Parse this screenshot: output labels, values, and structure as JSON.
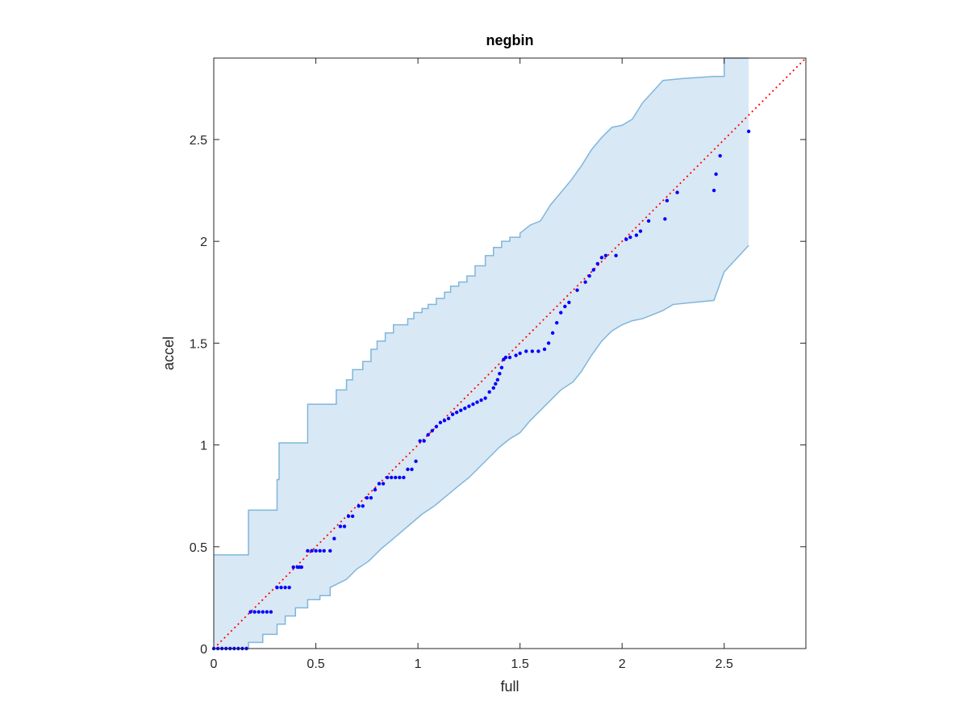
{
  "chart_data": {
    "type": "scatter",
    "title": "negbin",
    "xlabel": "full",
    "ylabel": "accel",
    "xlim": [
      0,
      2.9
    ],
    "ylim": [
      0,
      2.9
    ],
    "xticks": [
      0,
      0.5,
      1,
      1.5,
      2,
      2.5
    ],
    "yticks": [
      0,
      0.5,
      1,
      1.5,
      2,
      2.5
    ],
    "xtick_labels": [
      "0",
      "0.5",
      "1",
      "1.5",
      "2",
      "2.5"
    ],
    "ytick_labels": [
      "0",
      "0.5",
      "1",
      "1.5",
      "2",
      "2.5"
    ],
    "grid": false,
    "colors": {
      "points": "#0000ff",
      "reference": "#ff0000",
      "band_fill": "#d9e8f5",
      "band_edge": "#7fb6dc",
      "axes": "#262626"
    },
    "reference_line": {
      "x": [
        0,
        2.9
      ],
      "y": [
        0,
        2.9
      ],
      "style": "dotted"
    },
    "band_upper": {
      "x": [
        0,
        0.17,
        0.17,
        0.18,
        0.18,
        0.31,
        0.31,
        0.32,
        0.32,
        0.46,
        0.46,
        0.57,
        0.57,
        0.6,
        0.6,
        0.65,
        0.65,
        0.68,
        0.68,
        0.73,
        0.73,
        0.77,
        0.77,
        0.8,
        0.8,
        0.84,
        0.84,
        0.88,
        0.88,
        0.95,
        0.95,
        0.98,
        0.98,
        1.02,
        1.02,
        1.05,
        1.05,
        1.09,
        1.09,
        1.13,
        1.13,
        1.16,
        1.16,
        1.2,
        1.2,
        1.24,
        1.24,
        1.28,
        1.28,
        1.33,
        1.33,
        1.37,
        1.37,
        1.41,
        1.41,
        1.45,
        1.45,
        1.5,
        1.5,
        1.55,
        1.6,
        1.65,
        1.7,
        1.75,
        1.8,
        1.85,
        1.9,
        1.95,
        2.0,
        2.05,
        2.1,
        2.2,
        2.3,
        2.45,
        2.5,
        2.5,
        2.62
      ],
      "y": [
        0.46,
        0.46,
        0.68,
        0.68,
        0.68,
        0.68,
        0.83,
        0.83,
        1.01,
        1.01,
        1.2,
        1.2,
        1.2,
        1.2,
        1.27,
        1.27,
        1.32,
        1.32,
        1.37,
        1.37,
        1.41,
        1.41,
        1.47,
        1.47,
        1.51,
        1.51,
        1.55,
        1.55,
        1.59,
        1.59,
        1.62,
        1.62,
        1.65,
        1.65,
        1.67,
        1.67,
        1.69,
        1.69,
        1.72,
        1.72,
        1.75,
        1.75,
        1.78,
        1.78,
        1.8,
        1.8,
        1.83,
        1.83,
        1.88,
        1.88,
        1.93,
        1.93,
        1.97,
        1.97,
        2.0,
        2.0,
        2.02,
        2.02,
        2.04,
        2.08,
        2.1,
        2.18,
        2.24,
        2.3,
        2.37,
        2.45,
        2.51,
        2.56,
        2.57,
        2.6,
        2.68,
        2.79,
        2.8,
        2.81,
        2.81,
        2.9,
        2.9
      ]
    },
    "band_lower": {
      "x": [
        0,
        0.17,
        0.17,
        0.24,
        0.24,
        0.31,
        0.31,
        0.35,
        0.35,
        0.4,
        0.4,
        0.46,
        0.46,
        0.52,
        0.52,
        0.57,
        0.57,
        0.65,
        0.7,
        0.76,
        0.82,
        0.88,
        0.95,
        1.02,
        1.08,
        1.14,
        1.2,
        1.25,
        1.3,
        1.35,
        1.4,
        1.45,
        1.5,
        1.55,
        1.6,
        1.7,
        1.76,
        1.8,
        1.85,
        1.9,
        1.95,
        2.0,
        2.05,
        2.1,
        2.15,
        2.2,
        2.25,
        2.35,
        2.45,
        2.5,
        2.62
      ],
      "y": [
        0,
        0,
        0.03,
        0.03,
        0.07,
        0.07,
        0.12,
        0.12,
        0.16,
        0.16,
        0.2,
        0.2,
        0.24,
        0.24,
        0.26,
        0.26,
        0.3,
        0.34,
        0.39,
        0.43,
        0.49,
        0.54,
        0.6,
        0.66,
        0.7,
        0.75,
        0.8,
        0.84,
        0.89,
        0.94,
        0.99,
        1.03,
        1.06,
        1.12,
        1.17,
        1.27,
        1.31,
        1.36,
        1.44,
        1.51,
        1.56,
        1.59,
        1.61,
        1.62,
        1.64,
        1.66,
        1.69,
        1.7,
        1.71,
        1.85,
        1.98
      ]
    },
    "series": [
      {
        "x": [
          0.0,
          0.02,
          0.04,
          0.06,
          0.08,
          0.1,
          0.12,
          0.14,
          0.16,
          0.18,
          0.2,
          0.22,
          0.24,
          0.26,
          0.28,
          0.31,
          0.33,
          0.35,
          0.37,
          0.39,
          0.41,
          0.42,
          0.43,
          0.46,
          0.48,
          0.5,
          0.52,
          0.54,
          0.57,
          0.59,
          0.62,
          0.64,
          0.66,
          0.68,
          0.71,
          0.73,
          0.75,
          0.77,
          0.79,
          0.81,
          0.83,
          0.85,
          0.87,
          0.89,
          0.91,
          0.93,
          0.95,
          0.97,
          0.99,
          1.01,
          1.03,
          1.05,
          1.07,
          1.09,
          1.11,
          1.13,
          1.15,
          1.17,
          1.19,
          1.21,
          1.23,
          1.25,
          1.27,
          1.29,
          1.31,
          1.33,
          1.35,
          1.37,
          1.38,
          1.39,
          1.4,
          1.41,
          1.42,
          1.43,
          1.45,
          1.48,
          1.5,
          1.53,
          1.56,
          1.59,
          1.62,
          1.64,
          1.66,
          1.68,
          1.7,
          1.72,
          1.74,
          1.78,
          1.82,
          1.84,
          1.86,
          1.88,
          1.9,
          1.92,
          1.97,
          2.02,
          2.04,
          2.07,
          2.09,
          2.13,
          2.21,
          2.22,
          2.27,
          2.45,
          2.46,
          2.48,
          2.62
        ],
        "y": [
          0.0,
          0.0,
          0.0,
          0.0,
          0.0,
          0.0,
          0.0,
          0.0,
          0.0,
          0.18,
          0.18,
          0.18,
          0.18,
          0.18,
          0.18,
          0.3,
          0.3,
          0.3,
          0.3,
          0.4,
          0.4,
          0.4,
          0.4,
          0.48,
          0.48,
          0.48,
          0.48,
          0.48,
          0.48,
          0.54,
          0.6,
          0.6,
          0.65,
          0.65,
          0.7,
          0.7,
          0.74,
          0.74,
          0.78,
          0.81,
          0.81,
          0.84,
          0.84,
          0.84,
          0.84,
          0.84,
          0.88,
          0.88,
          0.92,
          1.02,
          1.02,
          1.05,
          1.07,
          1.09,
          1.11,
          1.12,
          1.13,
          1.15,
          1.16,
          1.17,
          1.18,
          1.19,
          1.2,
          1.21,
          1.22,
          1.23,
          1.26,
          1.28,
          1.3,
          1.32,
          1.35,
          1.38,
          1.42,
          1.43,
          1.43,
          1.44,
          1.45,
          1.46,
          1.46,
          1.46,
          1.47,
          1.5,
          1.55,
          1.6,
          1.65,
          1.68,
          1.7,
          1.76,
          1.8,
          1.83,
          1.86,
          1.89,
          1.92,
          1.93,
          1.93,
          2.01,
          2.02,
          2.03,
          2.05,
          2.1,
          2.11,
          2.2,
          2.24,
          2.25,
          2.33,
          2.42,
          2.54
        ]
      }
    ]
  }
}
